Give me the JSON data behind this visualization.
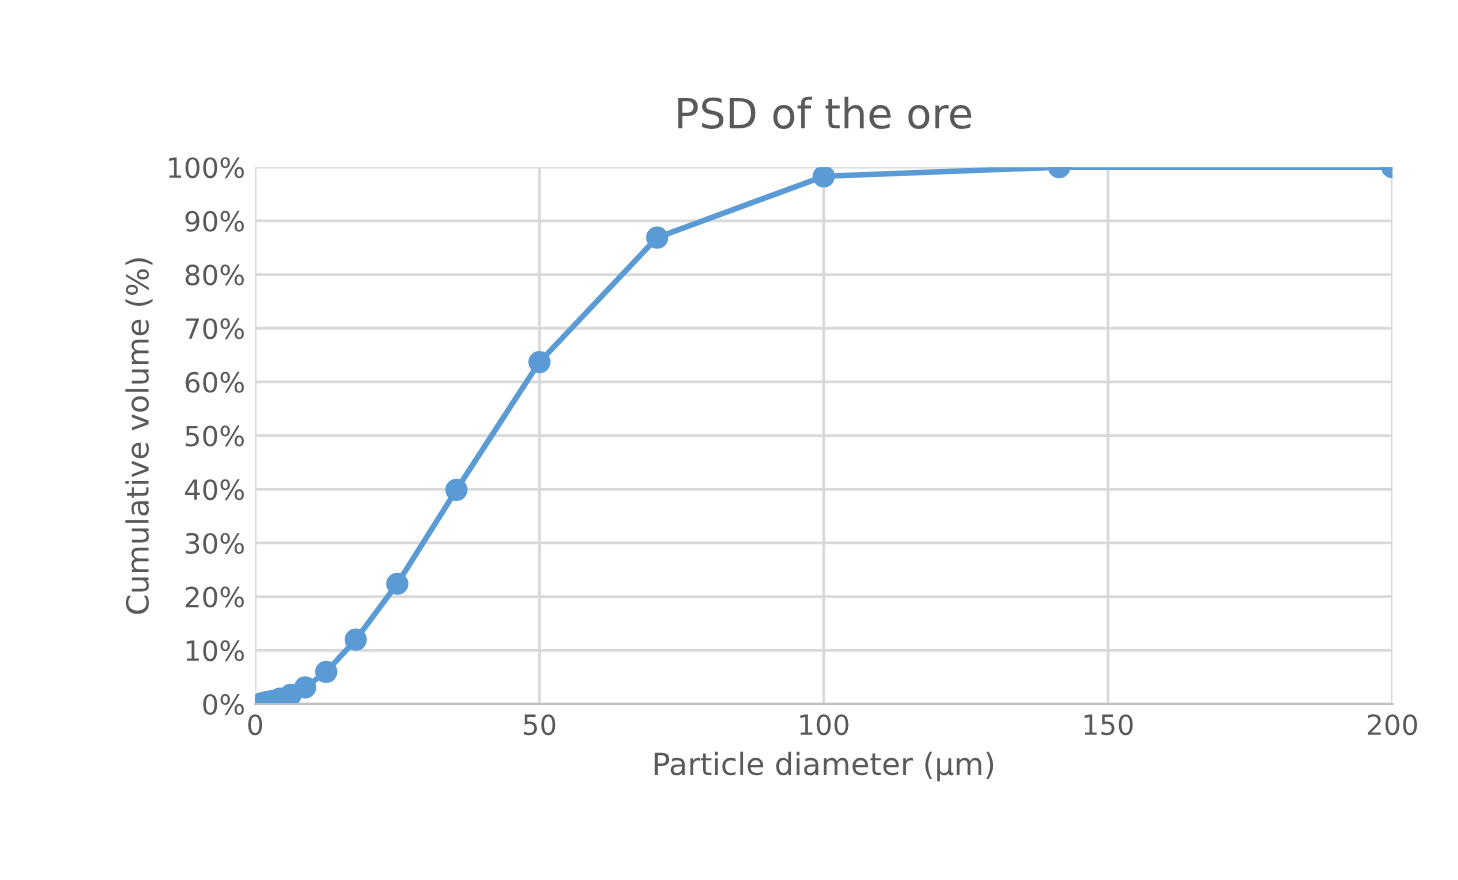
{
  "chart_data": {
    "type": "line",
    "title": "PSD of the ore",
    "xlabel": "Particle diameter (µm)",
    "ylabel": "Cumulative volume (%)",
    "series": [
      {
        "color": "#5b9bd5",
        "x": [
          1.1,
          1.6,
          2.2,
          3.1,
          4.4,
          6.25,
          8.8,
          12.5,
          17.7,
          25,
          35.4,
          50,
          70.7,
          100,
          141.4,
          200
        ],
        "values": [
          0.1,
          0.2,
          0.4,
          0.6,
          1.0,
          1.7,
          3.1,
          6.0,
          12.0,
          22.4,
          39.9,
          63.7,
          86.9,
          98.3,
          100,
          100
        ]
      }
    ],
    "marker": "circle",
    "line_style": "solid",
    "grid": true,
    "xlim": [
      0,
      200
    ],
    "xticks": [
      0,
      50,
      100,
      150,
      200
    ],
    "ylim": [
      0,
      100
    ],
    "yticks": [
      {
        "value": 0,
        "label": "0%"
      },
      {
        "value": 10,
        "label": "10%"
      },
      {
        "value": 20,
        "label": "20%"
      },
      {
        "value": 30,
        "label": "30%"
      },
      {
        "value": 40,
        "label": "40%"
      },
      {
        "value": 50,
        "label": "50%"
      },
      {
        "value": 60,
        "label": "60%"
      },
      {
        "value": 70,
        "label": "70%"
      },
      {
        "value": 80,
        "label": "80%"
      },
      {
        "value": 90,
        "label": "90%"
      },
      {
        "value": 100,
        "label": "100%"
      }
    ]
  }
}
